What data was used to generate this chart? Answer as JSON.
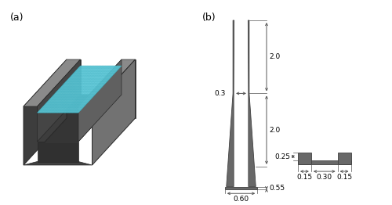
{
  "fig_width": 5.0,
  "fig_height": 2.62,
  "dpi": 100,
  "bg_color": "#ffffff",
  "label_a": "(a)",
  "label_b": "(b)",
  "gray_dark": "#4a4a4a",
  "gray_mid": "#606060",
  "gray_light": "#888888",
  "gray_fill": "#686868",
  "water_fill": "#5dc8d8",
  "water_line": "#3aafbf",
  "edge_color": "#282828",
  "dim_color": "#555555",
  "dim_fs": 6.5,
  "label_fs": 9
}
